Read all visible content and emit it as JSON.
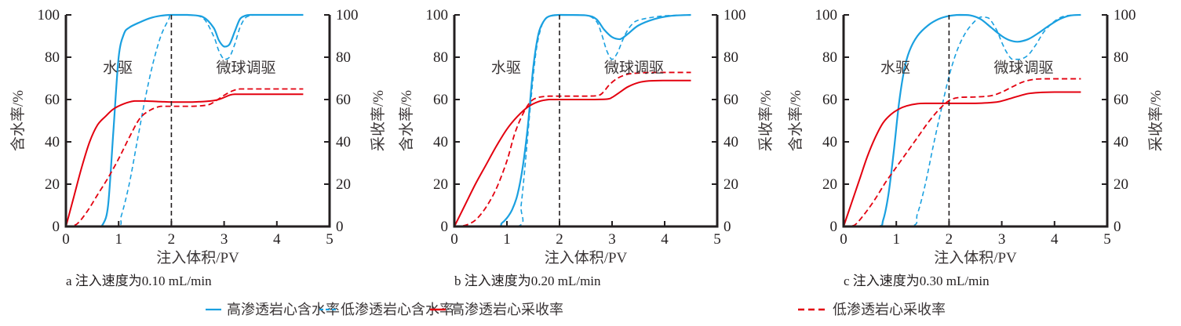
{
  "chart_data": [
    {
      "type": "line",
      "panel": "a",
      "caption": "a 注入速度为0.10 mL/min",
      "xlabel": "注入体积/PV",
      "ylabel_left": "含水率/%",
      "ylabel_right": "采收率/%",
      "xlim": [
        0,
        5
      ],
      "ylim_left": [
        0,
        100
      ],
      "ylim_right": [
        0,
        100
      ],
      "xticks": [
        "0",
        "1",
        "2",
        "3",
        "4",
        "5"
      ],
      "yticks": [
        "0",
        "20",
        "40",
        "60",
        "80",
        "100"
      ],
      "divider_x": 2,
      "annotations": [
        {
          "text": "水驱",
          "x": 0.7,
          "y": 75
        },
        {
          "text": "微球调驱",
          "x": 2.85,
          "y": 75
        }
      ],
      "series": [
        {
          "name": "高渗透岩心含水率",
          "axis": "left",
          "x": [
            0,
            0.6,
            0.7,
            0.8,
            0.9,
            1.0,
            1.1,
            1.2,
            1.4,
            1.6,
            1.8,
            2.0,
            2.3,
            2.6,
            2.8,
            2.9,
            3.0,
            3.1,
            3.2,
            3.3,
            3.4,
            3.5,
            3.8,
            4.5
          ],
          "y": [
            0,
            0,
            1,
            10,
            45,
            80,
            91,
            94,
            96.5,
            98.5,
            99.6,
            100,
            100,
            99,
            94,
            88,
            85,
            86,
            92,
            98,
            99.6,
            100,
            100,
            100
          ]
        },
        {
          "name": "低渗透岩心含水率",
          "axis": "left",
          "x": [
            0,
            0.95,
            1.05,
            1.2,
            1.35,
            1.5,
            1.65,
            1.8,
            1.95,
            2.0,
            2.3,
            2.6,
            2.8,
            2.9,
            3.0,
            3.1,
            3.2,
            3.3,
            3.4,
            3.5,
            3.6,
            3.8,
            4.5
          ],
          "y": [
            0,
            0,
            5,
            20,
            40,
            60,
            77,
            90,
            98,
            100,
            100,
            98.5,
            90,
            83,
            79,
            80,
            86,
            94,
            98.5,
            99.7,
            100,
            100,
            100
          ]
        },
        {
          "name": "高渗透岩心采收率",
          "axis": "right",
          "x": [
            0,
            0.15,
            0.3,
            0.45,
            0.6,
            0.75,
            0.9,
            1.1,
            1.3,
            1.5,
            1.8,
            2.0,
            2.4,
            2.8,
            2.95,
            3.1,
            3.2,
            3.5,
            4.5
          ],
          "y": [
            0,
            14,
            28,
            40,
            48,
            52,
            55.5,
            58,
            59.3,
            59.3,
            59,
            58.8,
            58.8,
            59.5,
            60.5,
            62,
            62.5,
            62.5,
            62.5
          ]
        },
        {
          "name": "低渗透岩心采收率",
          "axis": "right",
          "x": [
            0,
            0.2,
            0.4,
            0.6,
            0.8,
            1.0,
            1.2,
            1.4,
            1.6,
            1.8,
            2.0,
            2.4,
            2.7,
            2.85,
            3.0,
            3.15,
            3.3,
            3.5,
            4.5
          ],
          "y": [
            0,
            1,
            7,
            15,
            23,
            32,
            42,
            51,
            55,
            56.8,
            56.8,
            56.8,
            57.5,
            59.5,
            62,
            64,
            65,
            65,
            65
          ]
        }
      ]
    },
    {
      "type": "line",
      "panel": "b",
      "caption": "b 注入速度为0.20 mL/min",
      "xlabel": "注入体积/PV",
      "ylabel_left": "含水率/%",
      "ylabel_right": "采收率/%",
      "xlim": [
        0,
        5
      ],
      "ylim_left": [
        0,
        100
      ],
      "ylim_right": [
        0,
        100
      ],
      "xticks": [
        "0",
        "1",
        "2",
        "3",
        "4",
        "5"
      ],
      "yticks": [
        "0",
        "20",
        "40",
        "60",
        "80",
        "100"
      ],
      "divider_x": 2,
      "annotations": [
        {
          "text": "水驱",
          "x": 0.7,
          "y": 75
        },
        {
          "text": "微球调驱",
          "x": 2.85,
          "y": 75
        }
      ],
      "series": [
        {
          "name": "高渗透岩心含水率",
          "axis": "left",
          "x": [
            0,
            0.8,
            0.9,
            1.0,
            1.1,
            1.2,
            1.3,
            1.4,
            1.5,
            1.6,
            1.7,
            1.8,
            2.0,
            2.5,
            2.7,
            2.85,
            3.0,
            3.15,
            3.3,
            3.5,
            3.8,
            4.1,
            4.5
          ],
          "y": [
            0,
            0,
            1.5,
            4,
            8,
            15,
            28,
            48,
            75,
            91,
            97,
            99.3,
            100,
            99.8,
            98,
            93,
            89.5,
            88.5,
            91,
            95,
            98,
            99.5,
            100
          ]
        },
        {
          "name": "低渗透岩心含水率",
          "axis": "left",
          "x": [
            0,
            1.2,
            1.27,
            1.35,
            1.45,
            1.55,
            1.65,
            1.75,
            1.85,
            2.0,
            2.5,
            2.7,
            2.8,
            2.9,
            3.0,
            3.1,
            3.2,
            3.3,
            3.4,
            3.5,
            3.8,
            4.1,
            4.5
          ],
          "y": [
            0,
            0,
            10,
            30,
            58,
            82,
            94,
            98.5,
            99.7,
            100,
            99.8,
            97,
            91,
            83,
            79,
            82,
            88,
            93,
            96,
            97.5,
            99,
            99.7,
            100
          ]
        },
        {
          "name": "高渗透岩心采收率",
          "axis": "right",
          "x": [
            0,
            0.2,
            0.4,
            0.6,
            0.8,
            1.0,
            1.2,
            1.4,
            1.6,
            1.8,
            2.0,
            2.5,
            2.9,
            3.0,
            3.15,
            3.3,
            3.5,
            3.7,
            4.0,
            4.5
          ],
          "y": [
            0,
            10,
            20,
            29,
            38,
            46,
            52,
            56.5,
            59,
            60,
            60,
            60,
            60.2,
            61,
            63.5,
            66,
            68,
            68.8,
            69,
            69
          ]
        },
        {
          "name": "低渗透岩心采收率",
          "axis": "right",
          "x": [
            0,
            0.2,
            0.4,
            0.6,
            0.8,
            1.0,
            1.15,
            1.3,
            1.45,
            1.6,
            1.8,
            2.0,
            2.5,
            2.75,
            2.85,
            2.95,
            3.1,
            3.3,
            3.5,
            3.8,
            4.5
          ],
          "y": [
            0,
            0.5,
            3,
            9,
            18,
            31,
            44,
            53,
            59,
            61,
            61.6,
            61.6,
            61.6,
            62,
            64,
            67,
            70,
            72,
            72.5,
            72.8,
            72.8
          ]
        }
      ]
    },
    {
      "type": "line",
      "panel": "c",
      "caption": "c 注入速度为0.30 mL/min",
      "xlabel": "注入体积/PV",
      "ylabel_left": "含水率/%",
      "ylabel_right": "采收率/%",
      "xlim": [
        0,
        5
      ],
      "ylim_left": [
        0,
        100
      ],
      "ylim_right": [
        0,
        100
      ],
      "xticks": [
        "0",
        "1",
        "2",
        "3",
        "4",
        "5"
      ],
      "yticks": [
        "0",
        "20",
        "40",
        "60",
        "80",
        "100"
      ],
      "divider_x": 2,
      "annotations": [
        {
          "text": "水驱",
          "x": 0.7,
          "y": 75
        },
        {
          "text": "微球调驱",
          "x": 2.85,
          "y": 75
        }
      ],
      "series": [
        {
          "name": "高渗透岩心含水率",
          "axis": "left",
          "x": [
            0,
            0.65,
            0.75,
            0.85,
            0.95,
            1.05,
            1.15,
            1.25,
            1.4,
            1.6,
            1.8,
            2.0,
            2.2,
            2.4,
            2.6,
            2.8,
            3.0,
            3.15,
            3.3,
            3.5,
            3.7,
            3.9,
            4.1,
            4.3,
            4.5
          ],
          "y": [
            0,
            0,
            3,
            15,
            35,
            58,
            74,
            83,
            90,
            95,
            98,
            99.5,
            100,
            99.8,
            98,
            94,
            90,
            88,
            87.3,
            88.5,
            91.5,
            95,
            98,
            99.7,
            100
          ]
        },
        {
          "name": "低渗透岩心含水率",
          "axis": "left",
          "x": [
            0,
            1.25,
            1.4,
            1.55,
            1.7,
            1.85,
            2.0,
            2.15,
            2.3,
            2.45,
            2.6,
            2.75,
            2.9,
            3.0,
            3.1,
            3.2,
            3.35,
            3.5,
            3.65,
            3.8,
            4.0,
            4.2,
            4.5
          ],
          "y": [
            0,
            0,
            6,
            20,
            38,
            55,
            71,
            83,
            91,
            96,
            99,
            98.5,
            93,
            87,
            82,
            79,
            79,
            81,
            86,
            92,
            97,
            99.5,
            100
          ]
        },
        {
          "name": "高渗透岩心采收率",
          "axis": "right",
          "x": [
            0,
            0.15,
            0.3,
            0.45,
            0.6,
            0.75,
            0.9,
            1.05,
            1.2,
            1.4,
            1.6,
            2.0,
            2.5,
            2.9,
            3.1,
            3.3,
            3.5,
            3.7,
            4.0,
            4.5
          ],
          "y": [
            0,
            11,
            22,
            33,
            42,
            49,
            53,
            55.5,
            57,
            58,
            58.2,
            58.2,
            58.2,
            58.8,
            60,
            61.5,
            62.8,
            63.3,
            63.5,
            63.5
          ]
        },
        {
          "name": "低渗透岩心采收率",
          "axis": "right",
          "x": [
            0,
            0.2,
            0.4,
            0.6,
            0.8,
            1.0,
            1.2,
            1.4,
            1.6,
            1.8,
            2.0,
            2.2,
            2.5,
            2.8,
            3.0,
            3.2,
            3.4,
            3.6,
            3.8,
            4.0,
            4.5
          ],
          "y": [
            0,
            0.5,
            6,
            13,
            21,
            28,
            35,
            42,
            49,
            55,
            59.5,
            61,
            61.2,
            61.8,
            63.5,
            66,
            68.3,
            69.5,
            69.8,
            69.8,
            69.8
          ]
        }
      ]
    }
  ],
  "legend": {
    "items": [
      {
        "label": "高渗透岩心含水率",
        "color": "#1aa0e0",
        "style": "solid"
      },
      {
        "label": "低渗透岩心含水率",
        "color": "#1aa0e0",
        "style": "dashed"
      },
      {
        "label": "高渗透岩心采收率",
        "color": "#e3000f",
        "style": "solid"
      },
      {
        "label": "低渗透岩心采收率",
        "color": "#e3000f",
        "style": "dashed"
      }
    ],
    "placement": "bottom"
  },
  "colors": {
    "blue": "#1aa0e0",
    "red": "#e3000f",
    "axis": "#231f20",
    "divider": "#231f20"
  }
}
